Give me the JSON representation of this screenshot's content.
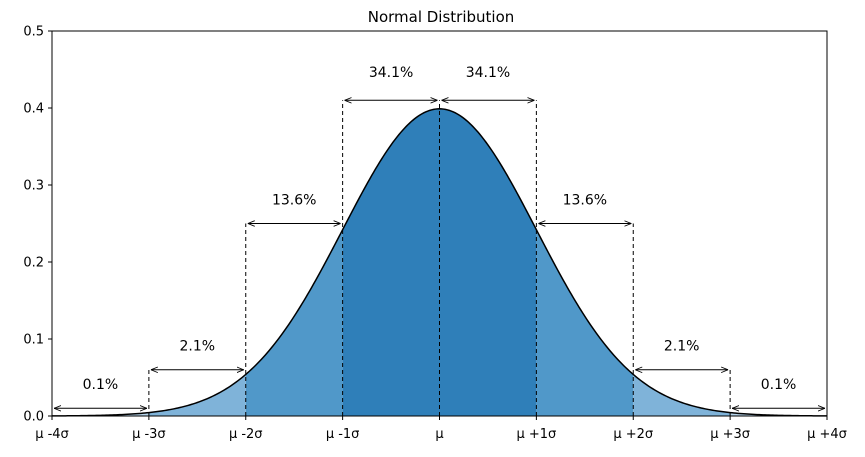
{
  "chart_data": {
    "type": "area",
    "title": "Normal Distribution",
    "xlabel": "",
    "ylabel": "",
    "xlim": [
      -4,
      4
    ],
    "ylim": [
      0,
      0.5
    ],
    "grid": false,
    "x_tick_values": [
      -4,
      -3,
      -2,
      -1,
      0,
      1,
      2,
      3,
      4
    ],
    "x_tick_labels": [
      "μ -4σ",
      "μ -3σ",
      "μ -2σ",
      "μ -1σ",
      "μ",
      "μ +1σ",
      "μ +2σ",
      "μ +3σ",
      "μ +4σ"
    ],
    "y_ticks": [
      "0.0",
      "0.1",
      "0.2",
      "0.3",
      "0.4",
      "0.5"
    ],
    "curve": {
      "description_values": {
        "peak_x": 0,
        "peak_y": 0.399
      }
    },
    "bands": [
      {
        "from": -1,
        "to": 0,
        "color": "#2f7fb9"
      },
      {
        "from": 0,
        "to": 1,
        "color": "#2f7fb9"
      },
      {
        "from": -2,
        "to": -1,
        "color": "#5098c9"
      },
      {
        "from": 1,
        "to": 2,
        "color": "#5098c9"
      },
      {
        "from": -3,
        "to": -2,
        "color": "#7fb3d9"
      },
      {
        "from": 2,
        "to": 3,
        "color": "#7fb3d9"
      },
      {
        "from": -4,
        "to": -3,
        "color": "#b6d4ea"
      },
      {
        "from": 3,
        "to": 4,
        "color": "#b6d4ea"
      }
    ],
    "annotations": [
      {
        "text": "34.1%",
        "from": -1,
        "to": 0,
        "arrow_y": 0.41,
        "text_y": 0.44
      },
      {
        "text": "34.1%",
        "from": 0,
        "to": 1,
        "arrow_y": 0.41,
        "text_y": 0.44
      },
      {
        "text": "13.6%",
        "from": -2,
        "to": -1,
        "arrow_y": 0.25,
        "text_y": 0.275
      },
      {
        "text": "13.6%",
        "from": 1,
        "to": 2,
        "arrow_y": 0.25,
        "text_y": 0.275
      },
      {
        "text": "2.1%",
        "from": -3,
        "to": -2,
        "arrow_y": 0.06,
        "text_y": 0.085
      },
      {
        "text": "2.1%",
        "from": 2,
        "to": 3,
        "arrow_y": 0.06,
        "text_y": 0.085
      },
      {
        "text": "0.1%",
        "from": -4,
        "to": -3,
        "arrow_y": 0.01,
        "text_y": 0.035
      },
      {
        "text": "0.1%",
        "from": 3,
        "to": 4,
        "arrow_y": 0.01,
        "text_y": 0.035
      }
    ],
    "dashed_lines": [
      {
        "x": -3,
        "y_top": 0.06
      },
      {
        "x": -2,
        "y_top": 0.25
      },
      {
        "x": -1,
        "y_top": 0.41
      },
      {
        "x": 0,
        "y_top": 0.41
      },
      {
        "x": 1,
        "y_top": 0.41
      },
      {
        "x": 2,
        "y_top": 0.25
      },
      {
        "x": 3,
        "y_top": 0.06
      }
    ],
    "colors": {
      "curve": "#000000",
      "annotation": "#000000"
    }
  }
}
